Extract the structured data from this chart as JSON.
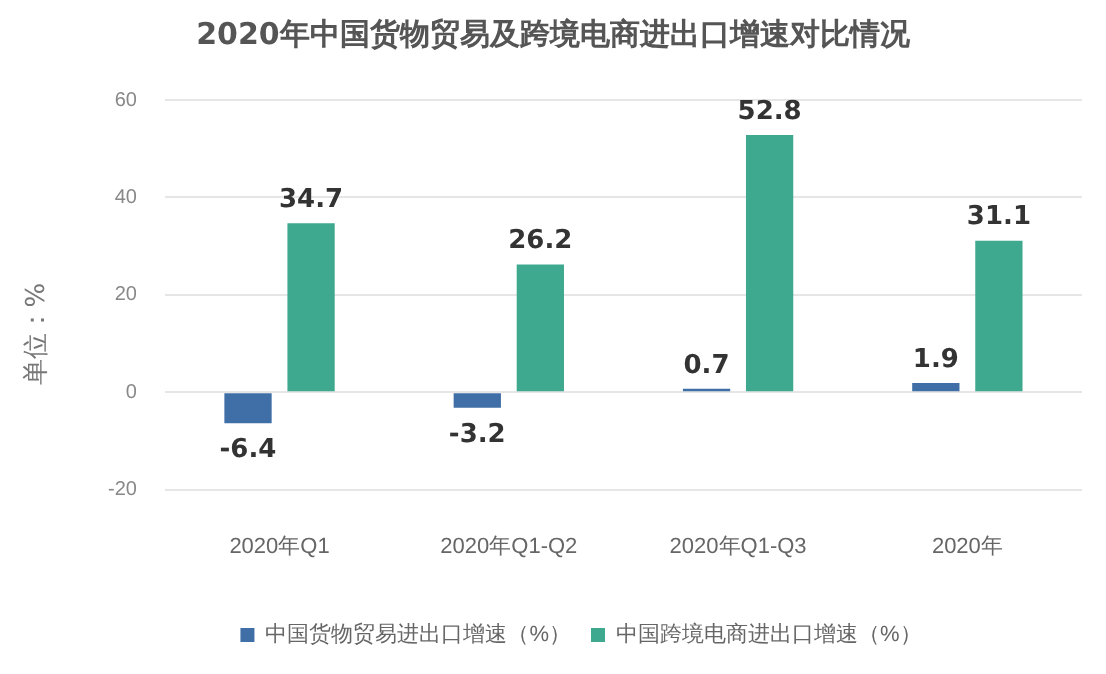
{
  "chart_data": {
    "type": "bar",
    "title": "2020年中国货物贸易及跨境电商进出口增速对比情况",
    "ylabel": "单位：%",
    "categories": [
      "2020年Q1",
      "2020年Q1-Q2",
      "2020年Q1-Q3",
      "2020年"
    ],
    "series": [
      {
        "name": "中国货物贸易进出口增速（%）",
        "color": "#3f6fa6",
        "values": [
          -6.4,
          -3.2,
          0.7,
          1.9
        ]
      },
      {
        "name": "中国跨境电商进出口增速（%）",
        "color": "#3fa98f",
        "values": [
          34.7,
          26.2,
          52.8,
          31.1
        ]
      }
    ],
    "ylim": [
      -20,
      60
    ],
    "yticks": [
      -20,
      0,
      20,
      40,
      60
    ],
    "grid": "y",
    "legend": "bottom",
    "data_labels": true
  }
}
